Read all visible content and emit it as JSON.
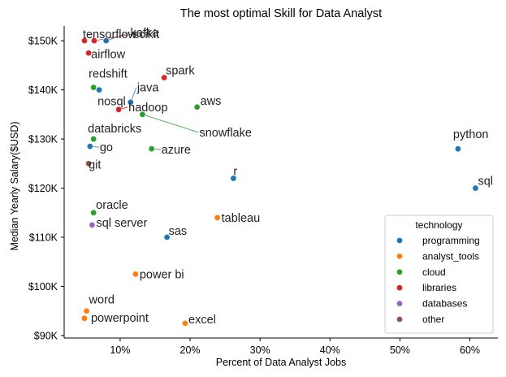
{
  "chart_data": {
    "type": "scatter",
    "title": "The most optimal Skill for Data Analyst",
    "xlabel": "Percent of Data Analyst Jobs",
    "ylabel": "Median Yearly Salary($USD)",
    "xlim": [
      2,
      64
    ],
    "ylim": [
      89500,
      153000
    ],
    "x_ticks": [
      10,
      20,
      30,
      40,
      50,
      60
    ],
    "x_tick_labels": [
      "10%",
      "20%",
      "30%",
      "40%",
      "50%",
      "60%"
    ],
    "y_ticks": [
      90000,
      100000,
      110000,
      120000,
      130000,
      140000,
      150000
    ],
    "y_tick_labels": [
      "$90K",
      "$100K",
      "$110K",
      "$120K",
      "$130K",
      "$140K",
      "$150K"
    ],
    "grid": false,
    "legend": {
      "title": "technology",
      "placement": "lower-right",
      "entries": [
        {
          "name": "programming",
          "color": "#1f77b4"
        },
        {
          "name": "analyst_tools",
          "color": "#ff7f0e"
        },
        {
          "name": "cloud",
          "color": "#2ca02c"
        },
        {
          "name": "libraries",
          "color": "#d62728"
        },
        {
          "name": "databases",
          "color": "#9467bd"
        },
        {
          "name": "other",
          "color": "#8c564b"
        }
      ]
    },
    "points": [
      {
        "skill": "python",
        "tech": "programming",
        "x": 58.3,
        "y": 128000
      },
      {
        "skill": "sql",
        "tech": "programming",
        "x": 60.8,
        "y": 120000
      },
      {
        "skill": "r",
        "tech": "programming",
        "x": 26.2,
        "y": 122000
      },
      {
        "skill": "sas",
        "tech": "programming",
        "x": 16.7,
        "y": 110000
      },
      {
        "skill": "go",
        "tech": "programming",
        "x": 5.7,
        "y": 128500
      },
      {
        "skill": "nosql",
        "tech": "programming",
        "x": 7.0,
        "y": 140000
      },
      {
        "skill": "java",
        "tech": "programming",
        "x": 11.5,
        "y": 137500
      },
      {
        "skill": "kafka",
        "tech": "programming",
        "x": 8.0,
        "y": 150000
      },
      {
        "skill": "tableau",
        "tech": "analyst_tools",
        "x": 23.9,
        "y": 114000
      },
      {
        "skill": "power bi",
        "tech": "analyst_tools",
        "x": 12.2,
        "y": 102500
      },
      {
        "skill": "excel",
        "tech": "analyst_tools",
        "x": 19.3,
        "y": 92500
      },
      {
        "skill": "word",
        "tech": "analyst_tools",
        "x": 5.2,
        "y": 95000
      },
      {
        "skill": "powerpoint",
        "tech": "analyst_tools",
        "x": 4.9,
        "y": 93500
      },
      {
        "skill": "aws",
        "tech": "cloud",
        "x": 21.0,
        "y": 136500
      },
      {
        "skill": "azure",
        "tech": "cloud",
        "x": 14.5,
        "y": 128000
      },
      {
        "skill": "snowflake",
        "tech": "cloud",
        "x": 13.2,
        "y": 135000
      },
      {
        "skill": "databricks",
        "tech": "cloud",
        "x": 6.2,
        "y": 130000
      },
      {
        "skill": "redshift",
        "tech": "cloud",
        "x": 6.2,
        "y": 140500
      },
      {
        "skill": "oracle",
        "tech": "cloud",
        "x": 6.2,
        "y": 115000
      },
      {
        "skill": "spark",
        "tech": "libraries",
        "x": 16.3,
        "y": 142500
      },
      {
        "skill": "hadoop",
        "tech": "libraries",
        "x": 9.8,
        "y": 136000
      },
      {
        "skill": "tensorflow",
        "tech": "libraries",
        "x": 4.9,
        "y": 150000
      },
      {
        "skill": "scikit",
        "tech": "libraries",
        "x": 6.3,
        "y": 150000
      },
      {
        "skill": "airflow",
        "tech": "libraries",
        "x": 5.5,
        "y": 147500
      },
      {
        "skill": "sql server",
        "tech": "databases",
        "x": 6.0,
        "y": 112500
      },
      {
        "skill": "git",
        "tech": "other",
        "x": 5.5,
        "y": 125000
      }
    ]
  }
}
